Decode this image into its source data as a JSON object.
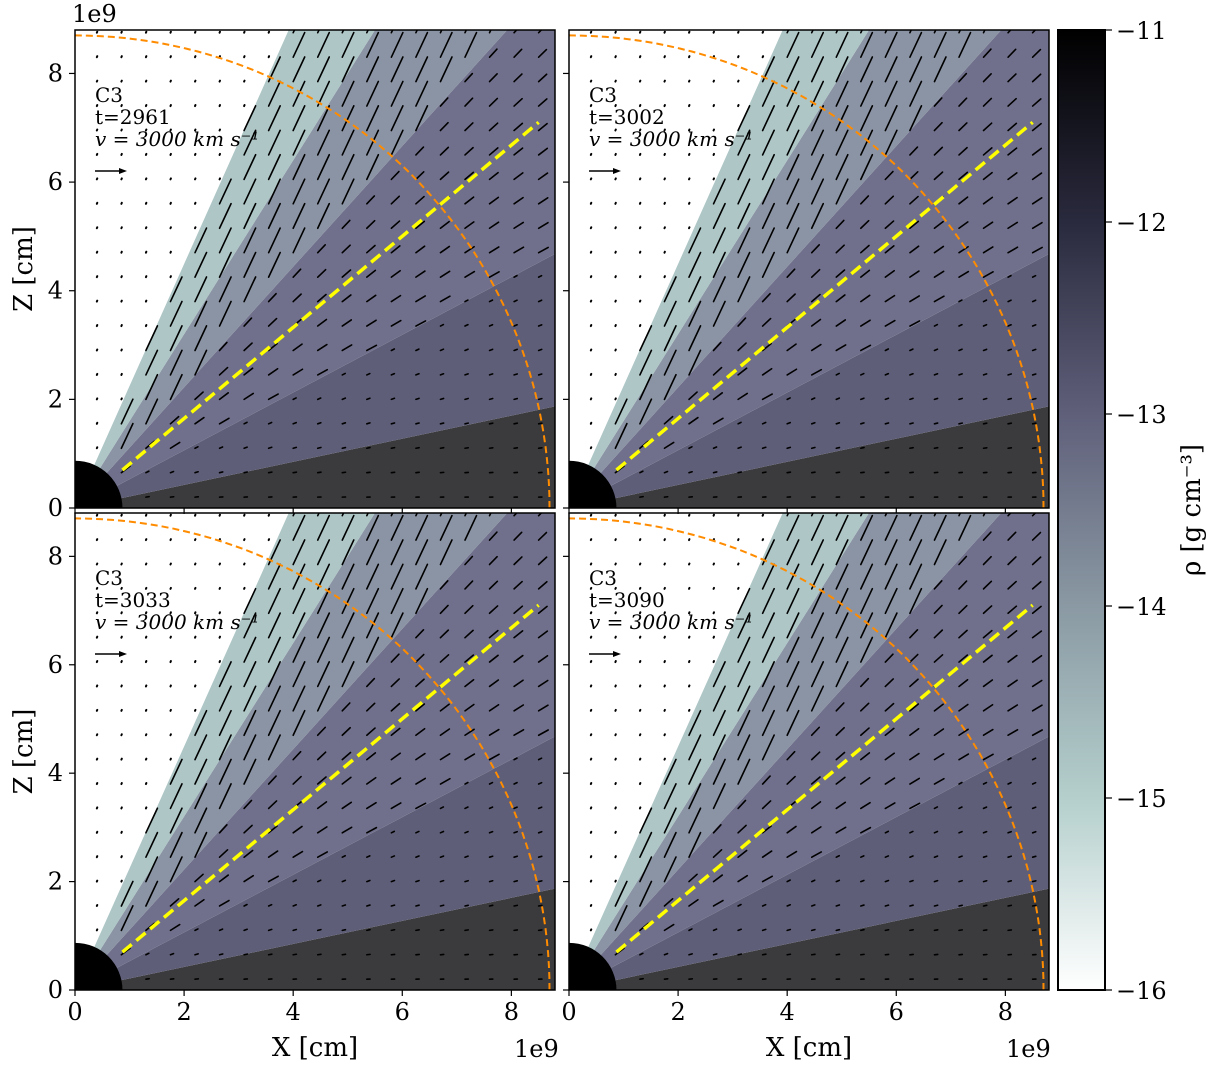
{
  "figure": {
    "x_offset_label": "1e9",
    "y_offset_label": "1e9"
  },
  "chart_data": {
    "type": "heatmap",
    "xlabel": "X [cm]",
    "ylabel": "Z [cm]",
    "xlim": [
      0,
      8.8
    ],
    "ylim": [
      0,
      8.8
    ],
    "x_ticks": [
      0,
      2,
      4,
      6,
      8
    ],
    "y_ticks": [
      0,
      2,
      4,
      6,
      8
    ],
    "axis_scale_factor": "1e9",
    "grid": false,
    "colorbar": {
      "label": "ρ [g cm⁻³]",
      "range": [
        -16,
        -11
      ],
      "ticks": [
        "−11",
        "−12",
        "−13",
        "−14",
        "−15",
        "−16"
      ],
      "colormap": "bone_r",
      "colors": [
        "#000000",
        "#3a3a50",
        "#707088",
        "#8fa0a8",
        "#b8d0d0",
        "#ffffff"
      ]
    },
    "annotation_colors": {
      "outer_boundary": "#ff8c00",
      "sightline": "#ffff00",
      "velocity_arrows": "#000000",
      "star": "#000000"
    },
    "velocity_key": "v = 3000 km s⁻¹",
    "panels": [
      {
        "model": "C3",
        "time": "t=2961",
        "velocity_key": "v = 3000 km s⁻¹"
      },
      {
        "model": "C3",
        "time": "t=3002",
        "velocity_key": "v = 3000 km s⁻¹"
      },
      {
        "model": "C3",
        "time": "t=3033",
        "velocity_key": "v = 3000 km s⁻¹"
      },
      {
        "model": "C3",
        "time": "t=3090",
        "velocity_key": "v = 3000 km s⁻¹"
      }
    ],
    "outer_boundary_radius": 8.7,
    "star_radius": 0.87,
    "sightline": {
      "x": [
        0.87,
        8.5
      ],
      "y": [
        0.7,
        7.1
      ]
    }
  }
}
